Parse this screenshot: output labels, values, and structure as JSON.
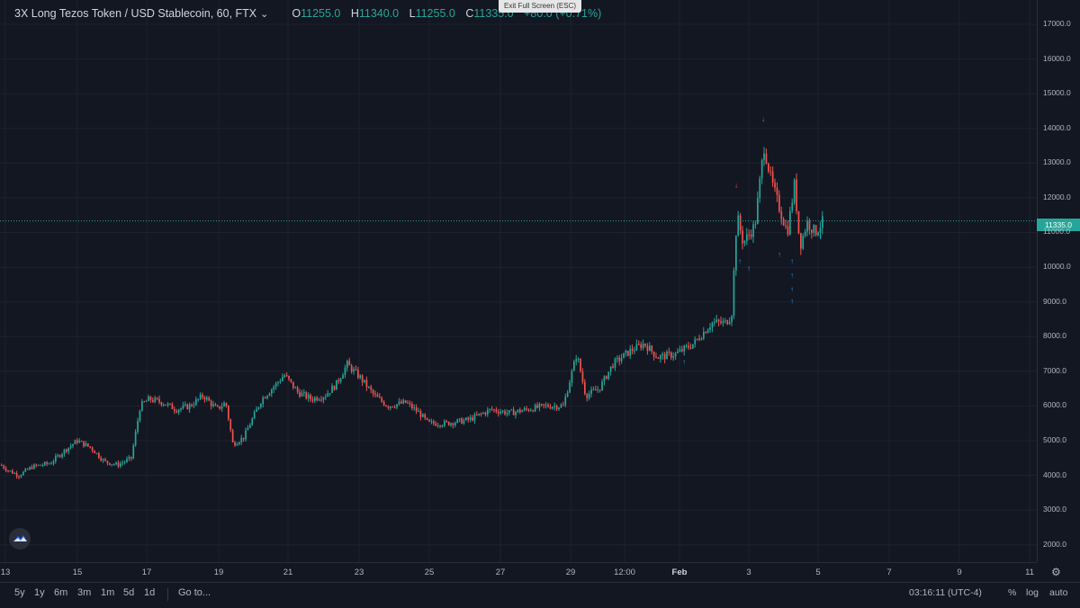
{
  "legend": {
    "title": "3X Long Tezos Token / USD Stablecoin, 60, FTX",
    "o_label": "O",
    "o_value": "11255.0",
    "h_label": "H",
    "h_value": "11340.0",
    "l_label": "L",
    "l_value": "11255.0",
    "c_label": "C",
    "c_value": "11335.0",
    "change": "+80.0 (+0.71%)"
  },
  "tooltip": "Exit Full Screen (ESC)",
  "price_axis": [
    "17000.0",
    "16000.0",
    "15000.0",
    "14000.0",
    "13000.0",
    "12000.0",
    "11000.0",
    "10000.0",
    "9000.0",
    "8000.0",
    "7000.0",
    "6000.0",
    "5000.0",
    "4000.0",
    "3000.0",
    "2000.0"
  ],
  "last_price": "11335.0",
  "time_axis": [
    {
      "label": "13",
      "bold": false
    },
    {
      "label": "15",
      "bold": false
    },
    {
      "label": "17",
      "bold": false
    },
    {
      "label": "19",
      "bold": false
    },
    {
      "label": "21",
      "bold": false
    },
    {
      "label": "23",
      "bold": false
    },
    {
      "label": "25",
      "bold": false
    },
    {
      "label": "27",
      "bold": false
    },
    {
      "label": "29",
      "bold": false
    },
    {
      "label": "12:00",
      "bold": false
    },
    {
      "label": "Feb",
      "bold": true
    },
    {
      "label": "3",
      "bold": false
    },
    {
      "label": "5",
      "bold": false
    },
    {
      "label": "7",
      "bold": false
    },
    {
      "label": "9",
      "bold": false
    },
    {
      "label": "11",
      "bold": false
    }
  ],
  "bottom_bar": {
    "ranges": [
      "5y",
      "1y",
      "6m",
      "3m",
      "1m",
      "5d",
      "1d"
    ],
    "goto": "Go to...",
    "clock": "03:16:11 (UTC-4)",
    "options": [
      "%",
      "log",
      "auto"
    ]
  },
  "colors": {
    "up": "#26a69a",
    "down": "#ef5350",
    "background": "#131722",
    "grid": "#1e222d"
  },
  "chart_data": {
    "type": "candlestick",
    "interval": "60",
    "ylim": [
      1500,
      17700
    ],
    "x_ticks": [
      "13",
      "15",
      "17",
      "19",
      "21",
      "23",
      "25",
      "27",
      "29",
      "12:00",
      "Feb",
      "3",
      "5",
      "7",
      "9",
      "11"
    ],
    "series": [
      {
        "name": "3X Long Tezos Token / USD Stablecoin",
        "close_path": [
          {
            "x": 0,
            "y": 4300
          },
          {
            "x": 8,
            "y": 4150
          },
          {
            "x": 20,
            "y": 4000
          },
          {
            "x": 35,
            "y": 4250
          },
          {
            "x": 55,
            "y": 4350
          },
          {
            "x": 70,
            "y": 4700
          },
          {
            "x": 85,
            "y": 5000
          },
          {
            "x": 100,
            "y": 4800
          },
          {
            "x": 115,
            "y": 4400
          },
          {
            "x": 130,
            "y": 4300
          },
          {
            "x": 145,
            "y": 4500
          },
          {
            "x": 155,
            "y": 6000
          },
          {
            "x": 165,
            "y": 6200
          },
          {
            "x": 180,
            "y": 6100
          },
          {
            "x": 195,
            "y": 5900
          },
          {
            "x": 210,
            "y": 6000
          },
          {
            "x": 225,
            "y": 6300
          },
          {
            "x": 240,
            "y": 5900
          },
          {
            "x": 250,
            "y": 6100
          },
          {
            "x": 258,
            "y": 4900
          },
          {
            "x": 270,
            "y": 5100
          },
          {
            "x": 290,
            "y": 6200
          },
          {
            "x": 305,
            "y": 6600
          },
          {
            "x": 315,
            "y": 6900
          },
          {
            "x": 330,
            "y": 6400
          },
          {
            "x": 345,
            "y": 6200
          },
          {
            "x": 360,
            "y": 6300
          },
          {
            "x": 372,
            "y": 6600
          },
          {
            "x": 385,
            "y": 7200
          },
          {
            "x": 400,
            "y": 6800
          },
          {
            "x": 415,
            "y": 6300
          },
          {
            "x": 430,
            "y": 6000
          },
          {
            "x": 450,
            "y": 6100
          },
          {
            "x": 465,
            "y": 5800
          },
          {
            "x": 475,
            "y": 5500
          },
          {
            "x": 495,
            "y": 5500
          },
          {
            "x": 520,
            "y": 5600
          },
          {
            "x": 545,
            "y": 5900
          },
          {
            "x": 565,
            "y": 5800
          },
          {
            "x": 585,
            "y": 5900
          },
          {
            "x": 605,
            "y": 6000
          },
          {
            "x": 625,
            "y": 6000
          },
          {
            "x": 640,
            "y": 7500
          },
          {
            "x": 650,
            "y": 6300
          },
          {
            "x": 665,
            "y": 6500
          },
          {
            "x": 680,
            "y": 7200
          },
          {
            "x": 700,
            "y": 7600
          },
          {
            "x": 715,
            "y": 7800
          },
          {
            "x": 730,
            "y": 7400
          },
          {
            "x": 750,
            "y": 7500
          },
          {
            "x": 770,
            "y": 7800
          },
          {
            "x": 790,
            "y": 8400
          },
          {
            "x": 805,
            "y": 8400
          },
          {
            "x": 812,
            "y": 8600
          },
          {
            "x": 818,
            "y": 11500
          },
          {
            "x": 825,
            "y": 10700
          },
          {
            "x": 838,
            "y": 11200
          },
          {
            "x": 848,
            "y": 13500
          },
          {
            "x": 856,
            "y": 12500
          },
          {
            "x": 864,
            "y": 11800
          },
          {
            "x": 874,
            "y": 11000
          },
          {
            "x": 882,
            "y": 12400
          },
          {
            "x": 888,
            "y": 10600
          },
          {
            "x": 896,
            "y": 11300
          },
          {
            "x": 905,
            "y": 11000
          },
          {
            "x": 914,
            "y": 11335
          }
        ]
      }
    ]
  }
}
